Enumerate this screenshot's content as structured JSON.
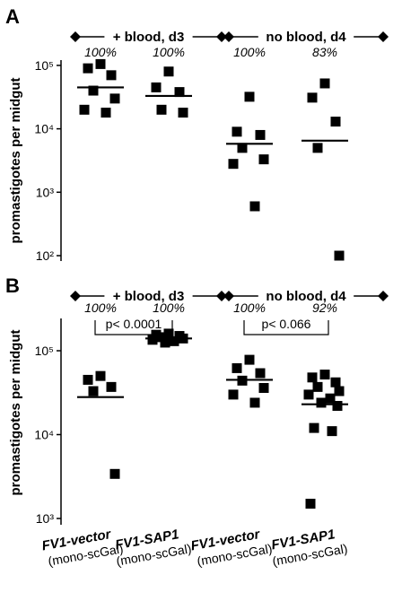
{
  "figure": {
    "categories": [
      {
        "main": "FV1-vector",
        "sub": "(mono-scGal)"
      },
      {
        "main": "FV1-SAP1",
        "sub": "(mono-scGal)"
      },
      {
        "main": "FV1-vector",
        "sub": "(mono-scGal)"
      },
      {
        "main": "FV1-SAP1",
        "sub": "(mono-scGal)"
      }
    ]
  },
  "chart_data": [
    {
      "type": "scatter",
      "panel": "A",
      "ylabel": "promastigotes per midgut",
      "yscale": "log",
      "ylim": [
        100,
        100000
      ],
      "yticks": [
        {
          "value": 100,
          "label": "10²"
        },
        {
          "value": 1000,
          "label": "10³"
        },
        {
          "value": 10000,
          "label": "10⁴"
        },
        {
          "value": 100000,
          "label": "10⁵"
        }
      ],
      "groups": [
        {
          "label": "+ blood, d3",
          "categories": [
            0,
            1
          ]
        },
        {
          "label": "no blood, d4",
          "categories": [
            2,
            3
          ]
        }
      ],
      "percentages": [
        "100%",
        "100%",
        "100%",
        "83%"
      ],
      "series": [
        {
          "category": 0,
          "values": [
            105000,
            90000,
            70000,
            40000,
            30000,
            20000,
            18000
          ],
          "median": 45000
        },
        {
          "category": 1,
          "values": [
            80000,
            45000,
            38000,
            20000,
            18000
          ],
          "median": 33000
        },
        {
          "category": 2,
          "values": [
            32000,
            9000,
            8000,
            5000,
            3300,
            2800,
            600
          ],
          "median": 5800
        },
        {
          "category": 3,
          "values": [
            52000,
            31000,
            13000,
            5000,
            100
          ],
          "median": 6500
        }
      ],
      "comparisons": []
    },
    {
      "type": "scatter",
      "panel": "B",
      "ylabel": "promastigotes per midgut",
      "yscale": "log",
      "ylim": [
        1000,
        1000000
      ],
      "yticks": [
        {
          "value": 1000,
          "label": "10³"
        },
        {
          "value": 10000,
          "label": "10⁴"
        },
        {
          "value": 100000,
          "label": "10⁵"
        }
      ],
      "groups": [
        {
          "label": "+ blood, d3",
          "categories": [
            0,
            1
          ]
        },
        {
          "label": "no blood, d4",
          "categories": [
            2,
            3
          ]
        }
      ],
      "percentages": [
        "100%",
        "100%",
        "100%",
        "92%"
      ],
      "series": [
        {
          "category": 0,
          "values": [
            50000,
            45000,
            37000,
            33000,
            3400
          ],
          "median": 28000
        },
        {
          "category": 1,
          "values": [
            160000,
            155000,
            150000,
            145000,
            140000,
            135000,
            130000,
            125000
          ],
          "median": 140000
        },
        {
          "category": 2,
          "values": [
            78000,
            62000,
            54000,
            44000,
            36000,
            30000,
            24000
          ],
          "median": 45000
        },
        {
          "category": 3,
          "values": [
            52000,
            48000,
            42000,
            37000,
            33000,
            30000,
            27000,
            24000,
            22000,
            12000,
            11000,
            1500
          ],
          "median": 23000
        }
      ],
      "comparisons": [
        {
          "categories": [
            0,
            1
          ],
          "label": "p< 0.0001"
        },
        {
          "categories": [
            2,
            3
          ],
          "label": "p< 0.066"
        }
      ]
    }
  ]
}
